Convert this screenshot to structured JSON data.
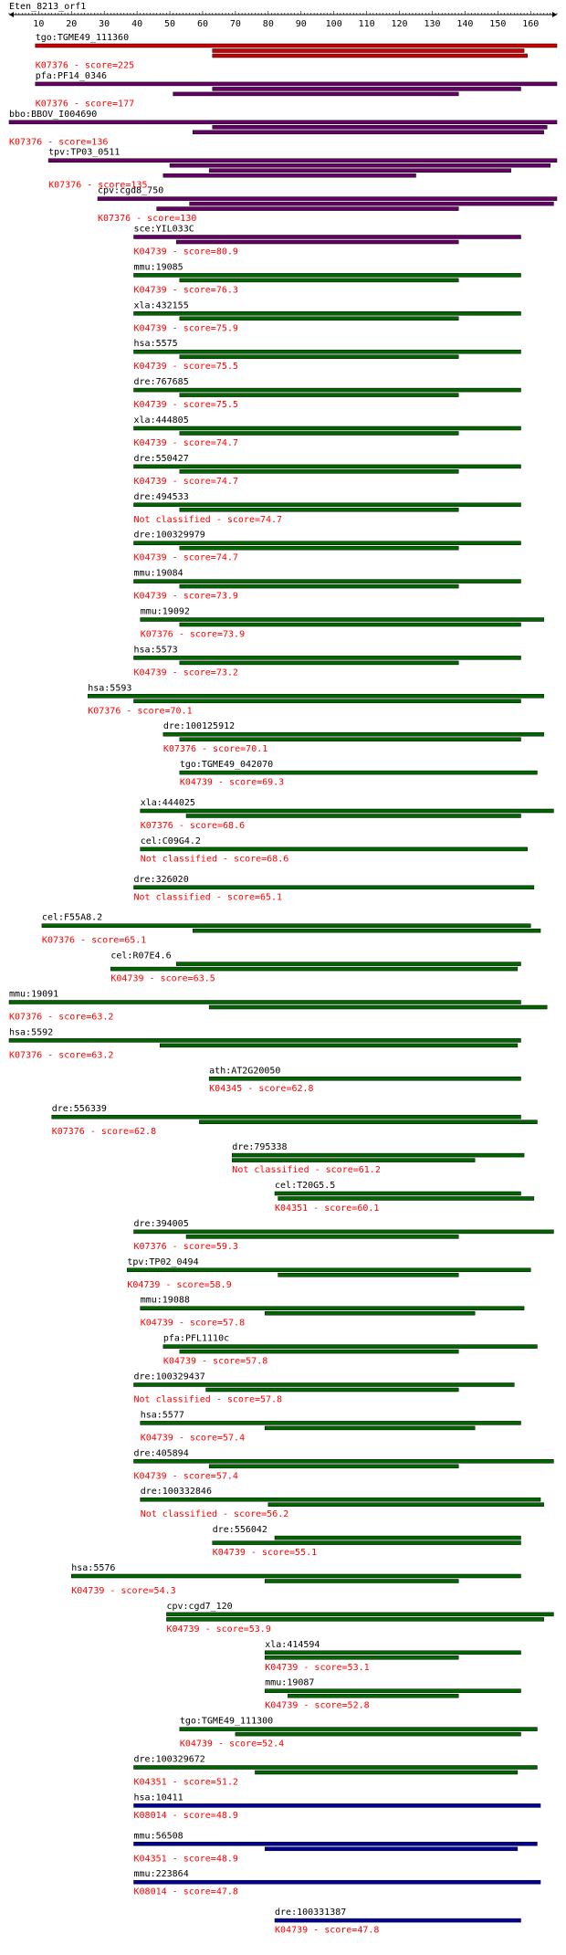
{
  "chart_data": {
    "type": "alignment",
    "title": "Eten_8213_orf1",
    "xlim": [
      1,
      168
    ],
    "ticks": [
      10,
      20,
      30,
      40,
      50,
      60,
      70,
      80,
      90,
      100,
      110,
      120,
      130,
      140,
      150,
      160
    ],
    "colors": {
      "red": "#cc0000",
      "purple": "#660066",
      "green": "#006600",
      "blue": "#000099",
      "label_text": "#000000",
      "annotation_text": "#ff0000"
    },
    "rows": [
      {
        "name": "tgo:TGME49_111360",
        "annotation": "K07376 - score=225",
        "color": "red",
        "bars": [
          [
            9,
            168
          ],
          [
            63,
            158
          ],
          [
            63,
            159
          ]
        ]
      },
      {
        "name": "pfa:PF14_0346",
        "annotation": "K07376 - score=177",
        "color": "purple",
        "bars": [
          [
            9,
            168
          ],
          [
            63,
            157
          ],
          [
            51,
            138
          ]
        ]
      },
      {
        "name": "bbo:BBOV_I004690",
        "annotation": "K07376 - score=136",
        "color": "purple",
        "bars": [
          [
            1,
            168
          ],
          [
            63,
            165
          ],
          [
            57,
            164
          ]
        ]
      },
      {
        "name": "tpv:TP03_0511",
        "annotation": "K07376 - score=135",
        "color": "purple",
        "bars": [
          [
            13,
            168
          ],
          [
            50,
            166
          ],
          [
            62,
            154
          ],
          [
            48,
            125
          ]
        ]
      },
      {
        "name": "cpv:cgd8_750",
        "annotation": "K07376 - score=130",
        "color": "purple",
        "bars": [
          [
            28,
            168
          ],
          [
            56,
            167
          ],
          [
            46,
            138
          ]
        ]
      },
      {
        "name": "sce:YIL033C",
        "annotation": "K04739 - score=80.9",
        "color": "purple",
        "bars": [
          [
            39,
            157
          ],
          [
            52,
            138
          ]
        ]
      },
      {
        "name": "mmu:19085",
        "annotation": "K04739 - score=76.3",
        "color": "green",
        "bars": [
          [
            39,
            157
          ],
          [
            53,
            138
          ]
        ]
      },
      {
        "name": "xla:432155",
        "annotation": "K04739 - score=75.9",
        "color": "green",
        "bars": [
          [
            39,
            157
          ],
          [
            53,
            138
          ]
        ]
      },
      {
        "name": "hsa:5575",
        "annotation": "K04739 - score=75.5",
        "color": "green",
        "bars": [
          [
            39,
            157
          ],
          [
            53,
            138
          ]
        ]
      },
      {
        "name": "dre:767685",
        "annotation": "K04739 - score=75.5",
        "color": "green",
        "bars": [
          [
            39,
            157
          ],
          [
            53,
            138
          ]
        ]
      },
      {
        "name": "xla:444805",
        "annotation": "K04739 - score=74.7",
        "color": "green",
        "bars": [
          [
            39,
            157
          ],
          [
            53,
            138
          ]
        ]
      },
      {
        "name": "dre:550427",
        "annotation": "K04739 - score=74.7",
        "color": "green",
        "bars": [
          [
            39,
            157
          ],
          [
            53,
            138
          ]
        ]
      },
      {
        "name": "dre:494533",
        "annotation": "Not classified - score=74.7",
        "color": "green",
        "bars": [
          [
            39,
            157
          ],
          [
            53,
            138
          ]
        ]
      },
      {
        "name": "dre:100329979",
        "annotation": "K04739 - score=74.7",
        "color": "green",
        "bars": [
          [
            39,
            157
          ],
          [
            53,
            138
          ]
        ]
      },
      {
        "name": "mmu:19084",
        "annotation": "K04739 - score=73.9",
        "color": "green",
        "bars": [
          [
            39,
            157
          ],
          [
            53,
            138
          ]
        ]
      },
      {
        "name": "mmu:19092",
        "annotation": "K07376 - score=73.9",
        "color": "green",
        "bars": [
          [
            41,
            164
          ],
          [
            53,
            157
          ]
        ]
      },
      {
        "name": "hsa:5573",
        "annotation": "K04739 - score=73.2",
        "color": "green",
        "bars": [
          [
            39,
            157
          ],
          [
            53,
            138
          ]
        ]
      },
      {
        "name": "hsa:5593",
        "annotation": "K07376 - score=70.1",
        "color": "green",
        "bars": [
          [
            25,
            164
          ],
          [
            39,
            157
          ]
        ]
      },
      {
        "name": "dre:100125912",
        "annotation": "K07376 - score=70.1",
        "color": "green",
        "bars": [
          [
            48,
            164
          ],
          [
            53,
            157
          ]
        ]
      },
      {
        "name": "tgo:TGME49_042070",
        "annotation": "K04739 - score=69.3",
        "color": "green",
        "bars": [
          [
            53,
            162
          ]
        ]
      },
      {
        "name": "xla:444025",
        "annotation": "K07376 - score=68.6",
        "color": "green",
        "bars": [
          [
            41,
            167
          ],
          [
            55,
            157
          ]
        ]
      },
      {
        "name": "cel:C09G4.2",
        "annotation": "Not classified - score=68.6",
        "color": "green",
        "bars": [
          [
            41,
            159
          ]
        ]
      },
      {
        "name": "dre:326020",
        "annotation": "Not classified - score=65.1",
        "color": "green",
        "bars": [
          [
            39,
            161
          ]
        ]
      },
      {
        "name": "cel:F55A8.2",
        "annotation": "K07376 - score=65.1",
        "color": "green",
        "bars": [
          [
            11,
            160
          ],
          [
            57,
            163
          ]
        ]
      },
      {
        "name": "cel:R07E4.6",
        "annotation": "K04739 - score=63.5",
        "color": "green",
        "bars": [
          [
            52,
            157
          ],
          [
            32,
            156
          ]
        ]
      },
      {
        "name": "mmu:19091",
        "annotation": "K07376 - score=63.2",
        "color": "green",
        "bars": [
          [
            1,
            157
          ],
          [
            62,
            165
          ]
        ]
      },
      {
        "name": "hsa:5592",
        "annotation": "K07376 - score=63.2",
        "color": "green",
        "bars": [
          [
            1,
            157
          ],
          [
            47,
            156
          ]
        ]
      },
      {
        "name": "ath:AT2G20050",
        "annotation": "K04345 - score=62.8",
        "color": "green",
        "bars": [
          [
            62,
            157
          ]
        ]
      },
      {
        "name": "dre:556339",
        "annotation": "K07376 - score=62.8",
        "color": "green",
        "bars": [
          [
            14,
            157
          ],
          [
            59,
            162
          ]
        ]
      },
      {
        "name": "dre:795338",
        "annotation": "Not classified - score=61.2",
        "color": "green",
        "bars": [
          [
            69,
            158
          ],
          [
            69,
            143
          ]
        ]
      },
      {
        "name": "cel:T20G5.5",
        "annotation": "K04351 - score=60.1",
        "color": "green",
        "bars": [
          [
            82,
            157
          ],
          [
            83,
            161
          ]
        ]
      },
      {
        "name": "dre:394005",
        "annotation": "K07376 - score=59.3",
        "color": "green",
        "bars": [
          [
            39,
            167
          ],
          [
            55,
            138
          ]
        ]
      },
      {
        "name": "tpv:TP02_0494",
        "annotation": "K04739 - score=58.9",
        "color": "green",
        "bars": [
          [
            37,
            160
          ],
          [
            83,
            138
          ]
        ]
      },
      {
        "name": "mmu:19088",
        "annotation": "K04739 - score=57.8",
        "color": "green",
        "bars": [
          [
            41,
            158
          ],
          [
            79,
            143
          ]
        ]
      },
      {
        "name": "pfa:PFL1110c",
        "annotation": "K04739 - score=57.8",
        "color": "green",
        "bars": [
          [
            48,
            162
          ],
          [
            53,
            138
          ]
        ]
      },
      {
        "name": "dre:100329437",
        "annotation": "Not classified - score=57.8",
        "color": "green",
        "bars": [
          [
            39,
            155
          ],
          [
            61,
            138
          ]
        ]
      },
      {
        "name": "hsa:5577",
        "annotation": "K04739 - score=57.4",
        "color": "green",
        "bars": [
          [
            41,
            157
          ],
          [
            79,
            143
          ]
        ]
      },
      {
        "name": "dre:405894",
        "annotation": "K04739 - score=57.4",
        "color": "green",
        "bars": [
          [
            39,
            167
          ],
          [
            62,
            138
          ]
        ]
      },
      {
        "name": "dre:100332846",
        "annotation": "Not classified - score=56.2",
        "color": "green",
        "bars": [
          [
            41,
            163
          ],
          [
            80,
            164
          ]
        ]
      },
      {
        "name": "dre:556042",
        "annotation": "K04739 - score=55.1",
        "color": "green",
        "bars": [
          [
            82,
            157
          ],
          [
            63,
            157
          ]
        ]
      },
      {
        "name": "hsa:5576",
        "annotation": "K04739 - score=54.3",
        "color": "green",
        "bars": [
          [
            20,
            157
          ],
          [
            79,
            138
          ]
        ]
      },
      {
        "name": "cpv:cgd7_120",
        "annotation": "K04739 - score=53.9",
        "color": "green",
        "bars": [
          [
            49,
            167
          ],
          [
            49,
            164
          ]
        ]
      },
      {
        "name": "xla:414594",
        "annotation": "K04739 - score=53.1",
        "color": "green",
        "bars": [
          [
            79,
            157
          ],
          [
            79,
            138
          ]
        ]
      },
      {
        "name": "mmu:19087",
        "annotation": "K04739 - score=52.8",
        "color": "green",
        "bars": [
          [
            79,
            157
          ],
          [
            86,
            138
          ]
        ]
      },
      {
        "name": "tgo:TGME49_111300",
        "annotation": "K04739 - score=52.4",
        "color": "green",
        "bars": [
          [
            53,
            162
          ],
          [
            70,
            157
          ]
        ]
      },
      {
        "name": "dre:100329672",
        "annotation": "K04351 - score=51.2",
        "color": "green",
        "bars": [
          [
            39,
            162
          ],
          [
            76,
            156
          ]
        ]
      },
      {
        "name": "hsa:10411",
        "annotation": "K08014 - score=48.9",
        "color": "blue",
        "bars": [
          [
            39,
            163
          ]
        ]
      },
      {
        "name": "mmu:56508",
        "annotation": "K04351 - score=48.9",
        "color": "blue",
        "bars": [
          [
            39,
            162
          ],
          [
            79,
            156
          ]
        ]
      },
      {
        "name": "mmu:223864",
        "annotation": "K08014 - score=47.8",
        "color": "blue",
        "bars": [
          [
            39,
            163
          ]
        ]
      },
      {
        "name": "dre:100331387",
        "annotation": "K04739 - score=47.8",
        "color": "blue",
        "bars": [
          [
            82,
            157
          ]
        ]
      }
    ]
  }
}
